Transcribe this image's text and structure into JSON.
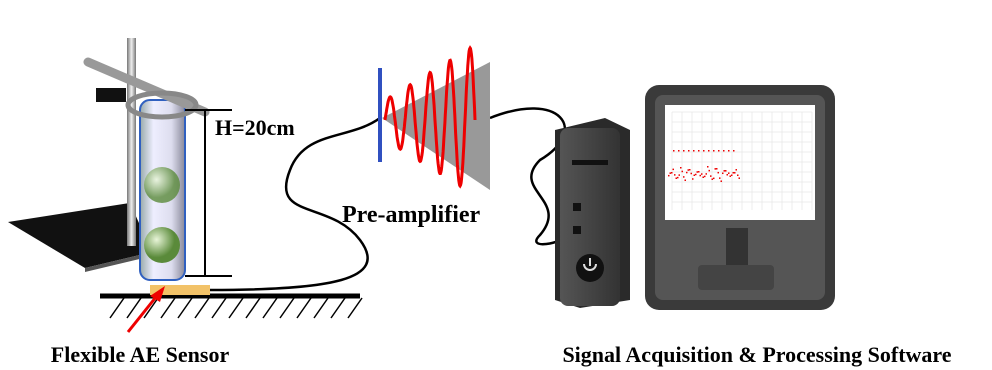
{
  "labels": {
    "height": "H=20cm",
    "preamp": "Pre-amplifier",
    "sensor": "Flexible AE Sensor",
    "software": "Signal Acquisition & Processing Software"
  }
}
